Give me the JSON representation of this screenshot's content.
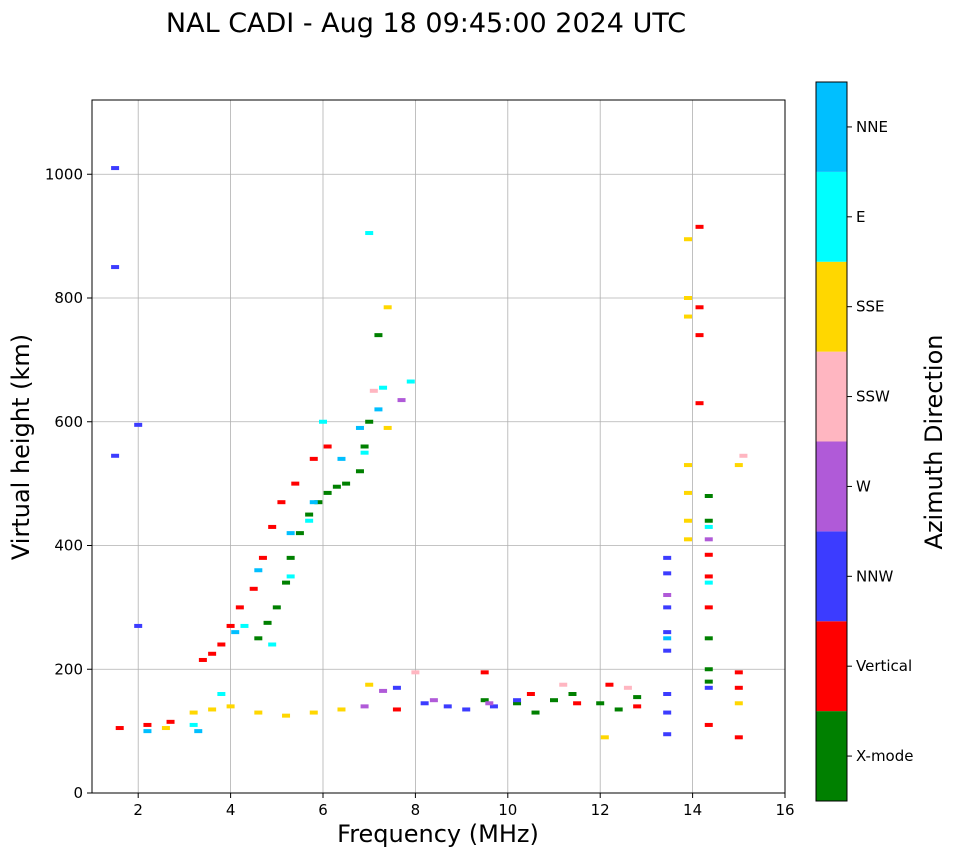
{
  "chart_data": {
    "type": "scatter",
    "title": "NAL CADI - Aug 18 09:45:00 2024 UTC",
    "xlabel": "Frequency (MHz)",
    "ylabel": "Virtual height (km)",
    "xlim": [
      1,
      16
    ],
    "ylim": [
      0,
      1120
    ],
    "xticks": [
      2,
      4,
      6,
      8,
      10,
      12,
      14,
      16
    ],
    "yticks": [
      0,
      200,
      400,
      600,
      800,
      1000
    ],
    "grid": true,
    "colorbar": {
      "label": "Azimuth Direction",
      "categories": [
        "X-mode",
        "Vertical",
        "NNW",
        "W",
        "SSW",
        "SSE",
        "E",
        "NNE"
      ],
      "colors": {
        "X-mode": "#008000",
        "Vertical": "#ff0000",
        "NNW": "#3c3cff",
        "W": "#b05ad8",
        "SSW": "#ffb6c1",
        "SSE": "#ffd700",
        "E": "#00ffff",
        "NNE": "#00bfff"
      }
    },
    "series": [
      {
        "name": "X-mode",
        "points": [
          [
            4.6,
            250
          ],
          [
            4.8,
            275
          ],
          [
            5.0,
            300
          ],
          [
            5.2,
            340
          ],
          [
            5.3,
            380
          ],
          [
            5.5,
            420
          ],
          [
            5.7,
            450
          ],
          [
            5.9,
            470
          ],
          [
            6.1,
            485
          ],
          [
            6.3,
            495
          ],
          [
            6.5,
            500
          ],
          [
            6.8,
            520
          ],
          [
            6.9,
            560
          ],
          [
            7.0,
            600
          ],
          [
            7.2,
            740
          ],
          [
            9.5,
            150
          ],
          [
            10.2,
            145
          ],
          [
            10.6,
            130
          ],
          [
            11.0,
            150
          ],
          [
            11.4,
            160
          ],
          [
            12.0,
            145
          ],
          [
            12.4,
            135
          ],
          [
            12.8,
            155
          ],
          [
            14.35,
            480
          ],
          [
            14.35,
            440
          ],
          [
            14.35,
            250
          ],
          [
            14.35,
            200
          ],
          [
            14.35,
            180
          ]
        ]
      },
      {
        "name": "Vertical",
        "points": [
          [
            1.6,
            105
          ],
          [
            2.2,
            110
          ],
          [
            2.7,
            115
          ],
          [
            3.4,
            215
          ],
          [
            3.6,
            225
          ],
          [
            3.8,
            240
          ],
          [
            4.0,
            270
          ],
          [
            4.2,
            300
          ],
          [
            4.5,
            330
          ],
          [
            4.7,
            380
          ],
          [
            4.9,
            430
          ],
          [
            5.1,
            470
          ],
          [
            5.4,
            500
          ],
          [
            5.8,
            540
          ],
          [
            6.1,
            560
          ],
          [
            7.6,
            135
          ],
          [
            9.5,
            195
          ],
          [
            10.5,
            160
          ],
          [
            11.5,
            145
          ],
          [
            12.2,
            175
          ],
          [
            12.8,
            140
          ],
          [
            14.15,
            915
          ],
          [
            14.15,
            785
          ],
          [
            14.15,
            740
          ],
          [
            14.15,
            630
          ],
          [
            14.35,
            385
          ],
          [
            14.35,
            350
          ],
          [
            14.35,
            300
          ],
          [
            14.35,
            110
          ],
          [
            15.0,
            195
          ],
          [
            15.0,
            170
          ],
          [
            15.0,
            90
          ]
        ]
      },
      {
        "name": "NNW",
        "points": [
          [
            1.5,
            1010
          ],
          [
            1.5,
            850
          ],
          [
            1.5,
            545
          ],
          [
            2.0,
            270
          ],
          [
            2.0,
            595
          ],
          [
            7.6,
            170
          ],
          [
            8.2,
            145
          ],
          [
            8.7,
            140
          ],
          [
            9.1,
            135
          ],
          [
            9.7,
            140
          ],
          [
            10.2,
            150
          ],
          [
            13.45,
            380
          ],
          [
            13.45,
            355
          ],
          [
            13.45,
            300
          ],
          [
            13.45,
            260
          ],
          [
            13.45,
            230
          ],
          [
            13.45,
            160
          ],
          [
            13.45,
            130
          ],
          [
            13.45,
            95
          ],
          [
            14.35,
            170
          ]
        ]
      },
      {
        "name": "W",
        "points": [
          [
            6.9,
            140
          ],
          [
            7.3,
            165
          ],
          [
            7.7,
            635
          ],
          [
            8.4,
            150
          ],
          [
            9.6,
            145
          ],
          [
            13.45,
            320
          ],
          [
            14.35,
            410
          ]
        ]
      },
      {
        "name": "SSW",
        "points": [
          [
            7.1,
            650
          ],
          [
            8.0,
            195
          ],
          [
            11.2,
            175
          ],
          [
            12.6,
            170
          ],
          [
            15.1,
            545
          ]
        ]
      },
      {
        "name": "SSE",
        "points": [
          [
            2.6,
            105
          ],
          [
            3.2,
            130
          ],
          [
            3.6,
            135
          ],
          [
            4.0,
            140
          ],
          [
            4.6,
            130
          ],
          [
            5.2,
            125
          ],
          [
            5.8,
            130
          ],
          [
            6.4,
            135
          ],
          [
            7.0,
            175
          ],
          [
            7.4,
            590
          ],
          [
            7.4,
            785
          ],
          [
            12.1,
            90
          ],
          [
            13.9,
            485
          ],
          [
            13.9,
            440
          ],
          [
            13.9,
            410
          ],
          [
            13.9,
            530
          ],
          [
            13.9,
            770
          ],
          [
            13.9,
            800
          ],
          [
            13.9,
            895
          ],
          [
            15.0,
            530
          ],
          [
            15.0,
            145
          ]
        ]
      },
      {
        "name": "E",
        "points": [
          [
            3.2,
            110
          ],
          [
            3.8,
            160
          ],
          [
            4.3,
            270
          ],
          [
            4.9,
            240
          ],
          [
            5.3,
            350
          ],
          [
            5.7,
            440
          ],
          [
            6.0,
            600
          ],
          [
            6.9,
            550
          ],
          [
            7.0,
            905
          ],
          [
            7.3,
            655
          ],
          [
            7.9,
            665
          ],
          [
            14.35,
            430
          ],
          [
            14.35,
            340
          ]
        ]
      },
      {
        "name": "NNE",
        "points": [
          [
            2.2,
            100
          ],
          [
            3.3,
            100
          ],
          [
            4.1,
            260
          ],
          [
            4.6,
            360
          ],
          [
            5.3,
            420
          ],
          [
            5.8,
            470
          ],
          [
            6.4,
            540
          ],
          [
            6.8,
            590
          ],
          [
            7.2,
            620
          ],
          [
            13.45,
            250
          ]
        ]
      }
    ]
  }
}
